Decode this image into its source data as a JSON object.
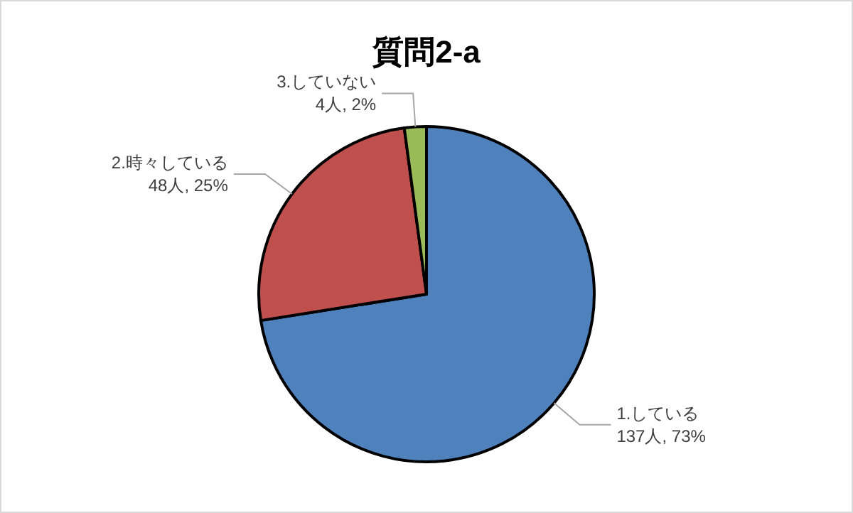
{
  "chart_data": {
    "type": "pie",
    "title": "質問2-a",
    "categories": [
      "1.している",
      "2.時々している",
      "3.していない"
    ],
    "values": [
      137,
      48,
      4
    ],
    "value_labels": [
      "137人, 73%",
      "48人, 25%",
      "4人, 2%"
    ],
    "colors": [
      "#4f81bd",
      "#c0504d",
      "#9bbb59"
    ]
  }
}
